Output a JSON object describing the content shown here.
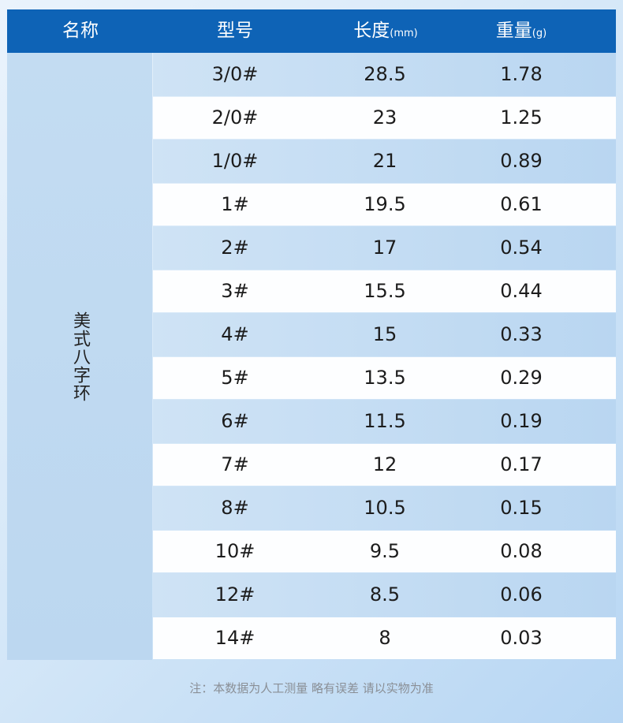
{
  "table": {
    "header": [
      {
        "label": "名称"
      },
      {
        "label": "型号"
      },
      {
        "label": "长度",
        "unit": "(mm)"
      },
      {
        "label": "重量",
        "unit": "(g)"
      }
    ],
    "name": "美式八字环",
    "rows": [
      [
        "3/0#",
        "28.5",
        "1.78"
      ],
      [
        "2/0#",
        "23",
        "1.25"
      ],
      [
        "1/0#",
        "21",
        "0.89"
      ],
      [
        "1#",
        "19.5",
        "0.61"
      ],
      [
        "2#",
        "17",
        "0.54"
      ],
      [
        "3#",
        "15.5",
        "0.44"
      ],
      [
        "4#",
        "15",
        "0.33"
      ],
      [
        "5#",
        "13.5",
        "0.29"
      ],
      [
        "6#",
        "11.5",
        "0.19"
      ],
      [
        "7#",
        "12",
        "0.17"
      ],
      [
        "8#",
        "10.5",
        "0.15"
      ],
      [
        "10#",
        "9.5",
        "0.08"
      ],
      [
        "12#",
        "8.5",
        "0.06"
      ],
      [
        "14#",
        "8",
        "0.03"
      ]
    ]
  },
  "footnote": "注：本数据为人工测量 略有误差 请以实物为准"
}
